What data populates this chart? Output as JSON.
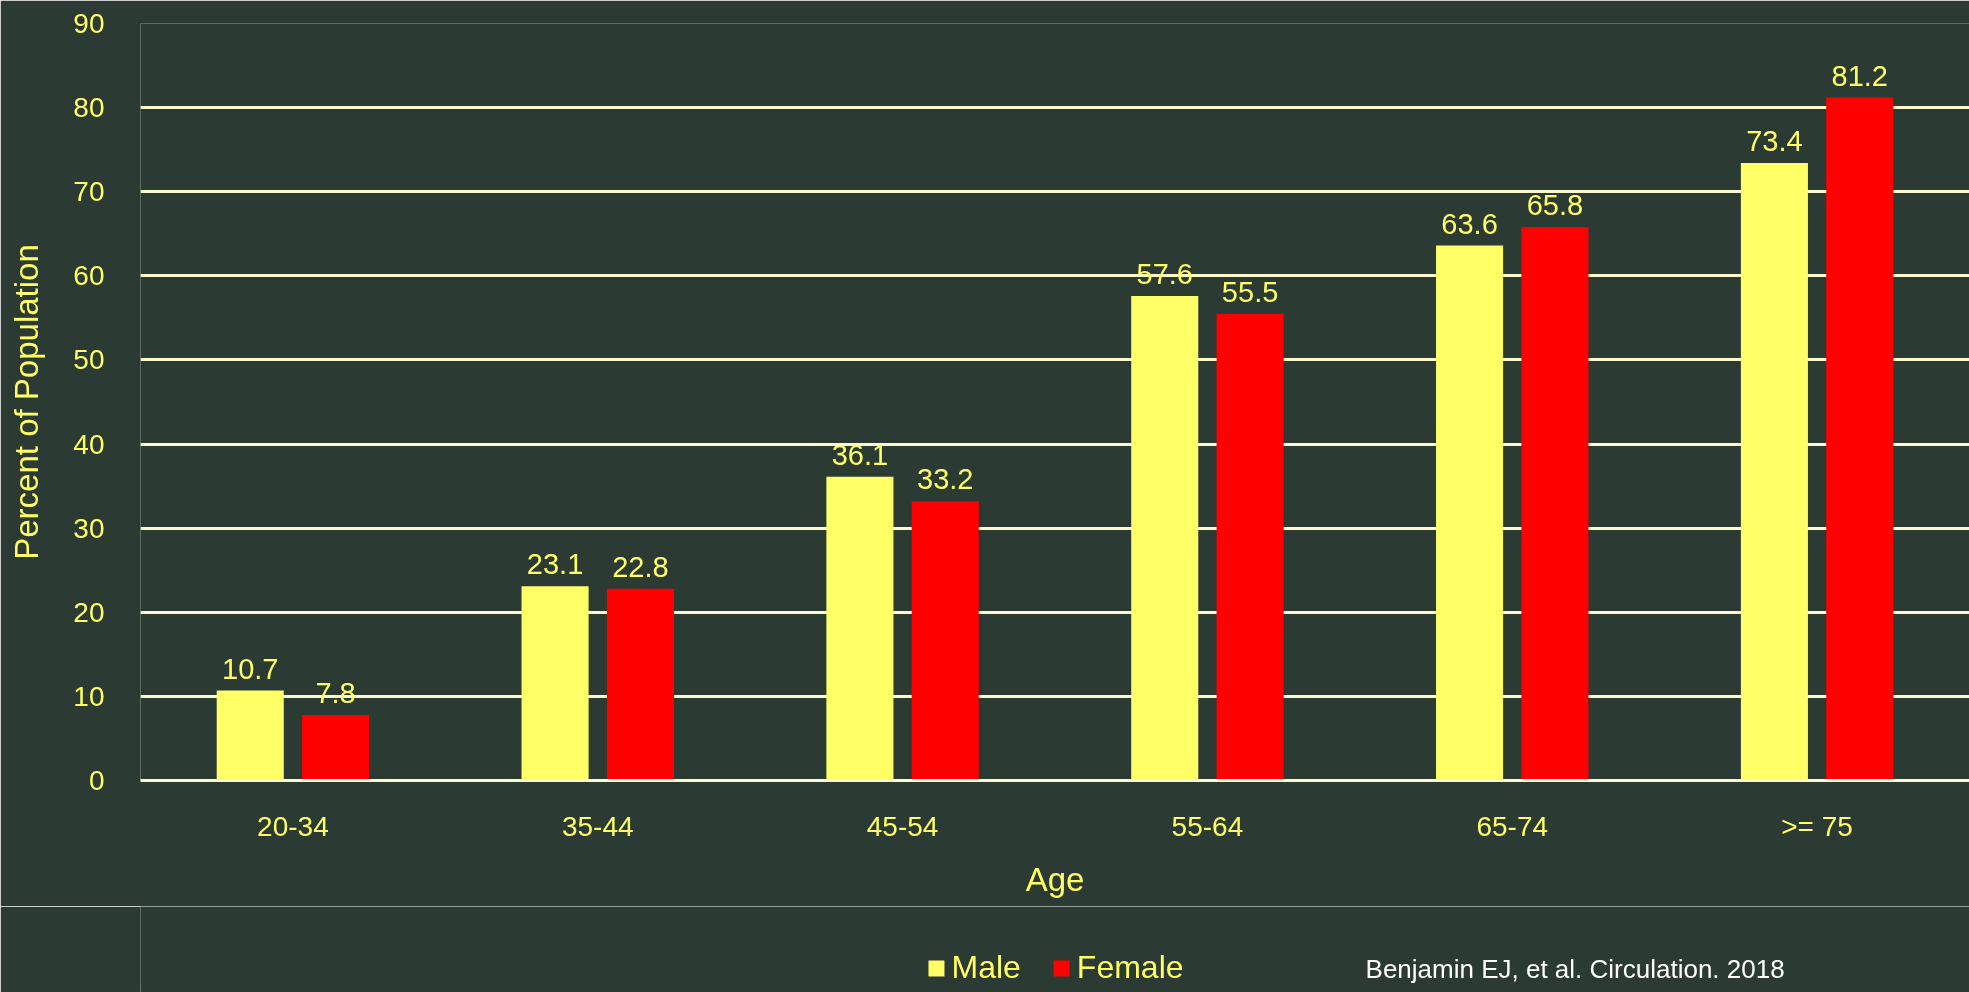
{
  "chart_data": {
    "type": "bar",
    "xlabel": "Age",
    "ylabel": "Percent of Population",
    "categories": [
      "20-34",
      "35-44",
      "45-54",
      "55-64",
      "65-74",
      ">= 75"
    ],
    "series": [
      {
        "name": "Male",
        "color": "#ffff66",
        "values": [
          10.7,
          23.1,
          36.1,
          57.6,
          63.6,
          73.4
        ]
      },
      {
        "name": "Female",
        "color": "#ff0000",
        "values": [
          7.8,
          22.8,
          33.2,
          55.5,
          65.8,
          81.2
        ]
      }
    ],
    "ylim": [
      0,
      90
    ],
    "yticks": [
      0,
      10,
      20,
      30,
      40,
      50,
      60,
      70,
      80,
      90
    ],
    "grid": "y",
    "legend": "bottom",
    "data_labels": true,
    "annotations": [
      "Benjamin EJ, et al. Circulation. 2018"
    ]
  }
}
